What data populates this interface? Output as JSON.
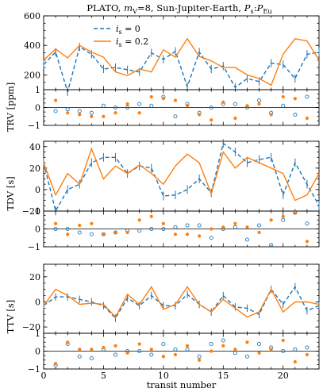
{
  "title": "PLATO, m_V=8, Sun-Jupiter-Earth, P_s:P_Eu",
  "colors": {
    "series0": "#1f77b4",
    "series1": "#ff7f0e"
  },
  "chart_data": [
    {
      "id": "trv",
      "type": "line",
      "ylabel": "TRV [ppm]",
      "xlim": [
        0,
        23
      ],
      "ylim": [
        100,
        600
      ],
      "yticks": [
        200,
        400,
        600
      ],
      "legend": "top-left",
      "series": [
        {
          "name": "i_s = 0",
          "style": "dashed-errorbars",
          "x": [
            0,
            1,
            2,
            3,
            4,
            5,
            6,
            7,
            8,
            9,
            10,
            11,
            12,
            13,
            14,
            15,
            16,
            17,
            18,
            19,
            20,
            21,
            22,
            23
          ],
          "y": [
            270,
            355,
            85,
            390,
            340,
            240,
            250,
            235,
            220,
            350,
            305,
            360,
            120,
            355,
            240,
            260,
            115,
            175,
            155,
            280,
            270,
            175,
            340,
            355
          ],
          "err": [
            28,
            28,
            28,
            28,
            28,
            28,
            28,
            28,
            28,
            28,
            28,
            28,
            28,
            28,
            28,
            28,
            28,
            28,
            28,
            28,
            28,
            28,
            28,
            28
          ]
        },
        {
          "name": "i_s = 0.2",
          "style": "solid",
          "x": [
            0,
            1,
            2,
            3,
            4,
            5,
            6,
            7,
            8,
            9,
            10,
            11,
            12,
            13,
            14,
            15,
            16,
            17,
            18,
            19,
            20,
            21,
            22,
            23
          ],
          "y": [
            300,
            375,
            315,
            400,
            355,
            320,
            220,
            195,
            240,
            220,
            370,
            320,
            445,
            325,
            295,
            250,
            250,
            200,
            175,
            130,
            340,
            445,
            430,
            300
          ]
        }
      ]
    },
    {
      "id": "trv-res",
      "type": "scatter",
      "ylabel": "",
      "xlim": [
        0,
        23
      ],
      "ylim": [
        -1,
        1
      ],
      "yticks": [
        -1,
        0,
        1
      ],
      "series": [
        {
          "name": "i_s = 0",
          "marker": "open-circle",
          "x": [
            1,
            2,
            3,
            4,
            5,
            6,
            7,
            8,
            9,
            10,
            11,
            12,
            13,
            14,
            15,
            16,
            17,
            18,
            19,
            20,
            21,
            22
          ],
          "y": [
            -0.2,
            -0.1,
            -0.2,
            -0.3,
            0.1,
            0.0,
            0.0,
            0.2,
            0.1,
            0.6,
            -0.5,
            0.2,
            -0.3,
            0.0,
            0.2,
            0.2,
            0.0,
            0.4,
            -0.3,
            0.1,
            -0.4,
            0.6
          ]
        },
        {
          "name": "i_s = 0.2",
          "marker": "filled-circle",
          "x": [
            1,
            2,
            3,
            4,
            5,
            6,
            7,
            8,
            9,
            10,
            11,
            12,
            13,
            14,
            15,
            16,
            17,
            18,
            19,
            20,
            21,
            22
          ],
          "y": [
            0.4,
            -0.3,
            -0.4,
            -0.5,
            -0.5,
            -0.3,
            0.2,
            -0.3,
            0.6,
            0.5,
            0.4,
            0.1,
            -0.4,
            -0.7,
            0.3,
            -0.6,
            0.1,
            0.2,
            -0.4,
            0.6,
            0.5,
            -0.6
          ]
        }
      ]
    },
    {
      "id": "tdv",
      "type": "line",
      "ylabel": "TDV [s]",
      "xlim": [
        0,
        23
      ],
      "ylim": [
        -20,
        45
      ],
      "yticks": [
        -20,
        0,
        20,
        40
      ],
      "series": [
        {
          "name": "i_s = 0",
          "style": "dashed-errorbars",
          "x": [
            0,
            1,
            2,
            3,
            4,
            5,
            6,
            7,
            8,
            9,
            10,
            11,
            12,
            13,
            14,
            15,
            16,
            17,
            18,
            19,
            20,
            21,
            22,
            23
          ],
          "y": [
            25,
            -20,
            0,
            5,
            25,
            30,
            30,
            15,
            22,
            20,
            -6,
            -5,
            0,
            10,
            -3,
            43,
            35,
            25,
            28,
            30,
            -5,
            25,
            5,
            -15
          ],
          "err": [
            4,
            4,
            4,
            4,
            4,
            4,
            4,
            4,
            4,
            4,
            4,
            4,
            4,
            4,
            4,
            4,
            4,
            4,
            4,
            4,
            4,
            4,
            4,
            4
          ]
        },
        {
          "name": "i_s = 0.2",
          "style": "solid",
          "x": [
            0,
            1,
            2,
            3,
            4,
            5,
            6,
            7,
            8,
            9,
            10,
            11,
            12,
            13,
            14,
            15,
            16,
            17,
            18,
            19,
            20,
            21,
            22,
            23
          ],
          "y": [
            25,
            -5,
            15,
            5,
            38,
            10,
            22,
            15,
            23,
            15,
            5,
            22,
            33,
            25,
            -4,
            35,
            20,
            30,
            25,
            20,
            15,
            -10,
            -5,
            15
          ]
        }
      ]
    },
    {
      "id": "tdv-res",
      "type": "scatter",
      "ylabel": "",
      "xlim": [
        0,
        23
      ],
      "ylim": [
        -1,
        1
      ],
      "yticks": [
        -1,
        0,
        1
      ],
      "series": [
        {
          "name": "i_s = 0",
          "marker": "open-circle",
          "x": [
            1,
            2,
            3,
            4,
            5,
            6,
            7,
            8,
            9,
            10,
            11,
            12,
            13,
            14,
            15,
            16,
            17,
            18,
            19,
            20,
            21,
            22
          ],
          "y": [
            0.0,
            0.0,
            -0.2,
            -0.3,
            -0.3,
            -0.2,
            -0.1,
            -0.1,
            0.0,
            0.0,
            0.1,
            0.2,
            0.2,
            -0.5,
            0.0,
            0.1,
            -0.6,
            0.2,
            -0.9,
            0.5,
            0.9,
            0.3
          ]
        },
        {
          "name": "i_s = 0.2",
          "marker": "filled-circle",
          "x": [
            1,
            2,
            3,
            4,
            5,
            6,
            7,
            8,
            9,
            10,
            11,
            12,
            13,
            14,
            15,
            16,
            17,
            18,
            19,
            20,
            21,
            22
          ],
          "y": [
            0.3,
            -0.3,
            0.2,
            0.3,
            -0.3,
            -0.2,
            -0.2,
            0.5,
            0.7,
            0.3,
            -0.3,
            -0.3,
            -0.4,
            0.0,
            0.1,
            0.3,
            0.1,
            -0.2,
            0.5,
            0.7,
            0.9,
            -0.7
          ]
        }
      ]
    },
    {
      "id": "ttv",
      "type": "line",
      "ylabel": "TTV [s]",
      "xlim": [
        0,
        23
      ],
      "ylim": [
        -25,
        30
      ],
      "yticks": [
        -20,
        0,
        20
      ],
      "series": [
        {
          "name": "i_s = 0",
          "style": "dashed-errorbars",
          "x": [
            0,
            1,
            2,
            3,
            4,
            5,
            6,
            7,
            8,
            9,
            10,
            11,
            12,
            13,
            14,
            15,
            16,
            17,
            18,
            19,
            20,
            21,
            22,
            23
          ],
          "y": [
            -3,
            4,
            4,
            2,
            0,
            -3,
            -13,
            3,
            -3,
            5,
            -3,
            -3,
            6,
            -2,
            -8,
            5,
            -4,
            -5,
            -10,
            10,
            -2,
            12,
            -7,
            -3
          ],
          "err": [
            3,
            3,
            3,
            3,
            3,
            3,
            3,
            3,
            3,
            3,
            3,
            3,
            3,
            3,
            3,
            3,
            3,
            3,
            3,
            3,
            3,
            3,
            3,
            3
          ]
        },
        {
          "name": "i_s = 0.2",
          "style": "solid",
          "x": [
            0,
            1,
            2,
            3,
            4,
            5,
            6,
            7,
            8,
            9,
            10,
            11,
            12,
            13,
            14,
            15,
            16,
            17,
            18,
            19,
            20,
            21,
            22,
            23
          ],
          "y": [
            -3,
            10,
            5,
            -2,
            -1,
            -2,
            -12,
            6,
            -2,
            12,
            -6,
            -2,
            12,
            -2,
            -8,
            2,
            -5,
            -12,
            -8,
            10,
            -8,
            0,
            0,
            -2
          ]
        }
      ]
    },
    {
      "id": "ttv-res",
      "type": "scatter",
      "ylabel": "",
      "xlabel": "transit number",
      "xlim": [
        0,
        23
      ],
      "ylim": [
        -1,
        1
      ],
      "yticks": [
        -1,
        0,
        1
      ],
      "xticks": [
        0,
        5,
        10,
        15,
        20
      ],
      "series": [
        {
          "name": "i_s = 0",
          "marker": "open-circle",
          "x": [
            1,
            2,
            3,
            4,
            5,
            6,
            7,
            8,
            9,
            10,
            11,
            12,
            13,
            14,
            15,
            16,
            17,
            18,
            19,
            20,
            21,
            22
          ],
          "y": [
            -0.8,
            0.4,
            -0.3,
            -0.4,
            0.1,
            -0.2,
            0.0,
            0.0,
            -0.2,
            0.4,
            0.1,
            0.1,
            -0.3,
            0.4,
            0.6,
            -0.1,
            -0.3,
            0.4,
            0.2,
            0.0,
            0.1,
            0.2
          ]
        },
        {
          "name": "i_s = 0.2",
          "marker": "filled-circle",
          "x": [
            1,
            2,
            3,
            4,
            5,
            6,
            7,
            8,
            9,
            10,
            11,
            12,
            13,
            14,
            15,
            16,
            17,
            18,
            19,
            20,
            21,
            22
          ],
          "y": [
            -0.7,
            0.5,
            0.1,
            0.1,
            0.2,
            0.3,
            -0.1,
            0.4,
            0.1,
            -0.3,
            -0.2,
            0.3,
            -0.5,
            0.0,
            0.3,
            0.1,
            0.5,
            -0.1,
            0.1,
            0.6,
            -0.6,
            -0.2
          ]
        }
      ]
    }
  ]
}
